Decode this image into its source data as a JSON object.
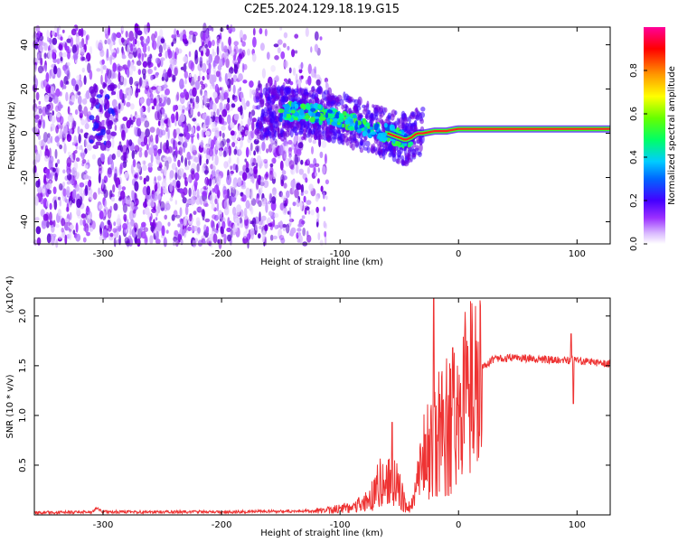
{
  "title": "C2E5.2024.129.18.19.G15",
  "colors": {
    "snr_line": "#ee3333",
    "spectro_purple": "#7a00e6",
    "ridge": "#ff2020"
  },
  "chart_data": [
    {
      "type": "heatmap",
      "name": "spectrogram",
      "xlabel": "Height of straight line (km)",
      "ylabel": "Frequency (Hz)",
      "xlim": [
        -358,
        128
      ],
      "ylim": [
        -50,
        48
      ],
      "xticks": [
        -300,
        -200,
        -100,
        0,
        100
      ],
      "yticks": [
        -40,
        -20,
        0,
        20,
        40
      ],
      "colorbar": {
        "label": "Normalized spectral amplitude",
        "range": [
          0.0,
          1.0
        ],
        "ticks": [
          "0.0",
          "0.2",
          "0.4",
          "0.6",
          "0.8"
        ]
      },
      "ridge": {
        "x": [
          -160,
          -140,
          -120,
          -100,
          -90,
          -80,
          -70,
          -60,
          -50,
          -45,
          -40,
          -35,
          -30,
          -20,
          -10,
          0,
          50,
          100,
          128
        ],
        "y": [
          9,
          10,
          9,
          7,
          5,
          3,
          1,
          0,
          -2,
          -3,
          -2,
          0,
          0,
          1,
          1,
          2,
          2,
          2,
          2
        ]
      },
      "noise_region": [
        -358,
        -120
      ],
      "gap_region": [
        -310,
        -303
      ]
    },
    {
      "type": "line",
      "name": "snr",
      "xlabel": "Height of straight line (km)",
      "ylabel": "SNR (10 * v/v)",
      "y_multiplier": "(x10^4)",
      "xlim": [
        -358,
        128
      ],
      "ylim": [
        0,
        2.18
      ],
      "xticks": [
        -300,
        -200,
        -100,
        0,
        100
      ],
      "yticks": [
        0.5,
        1.0,
        1.5,
        2.0
      ],
      "ytick_labels": [
        "0.5",
        "1.0",
        "1.5",
        "2.0"
      ],
      "envelope": {
        "x": [
          -358,
          -310,
          -305,
          -300,
          -200,
          -120,
          -100,
          -80,
          -70,
          -60,
          -50,
          -45,
          -40,
          -35,
          -30,
          -20,
          -10,
          0,
          10,
          20,
          30,
          50,
          80,
          100,
          128
        ],
        "y": [
          0.02,
          0.03,
          0.07,
          0.03,
          0.03,
          0.04,
          0.06,
          0.12,
          0.22,
          0.35,
          0.28,
          0.1,
          0.08,
          0.3,
          0.55,
          0.75,
          0.95,
          1.0,
          1.25,
          1.48,
          1.57,
          1.58,
          1.56,
          1.55,
          1.52
        ]
      },
      "spikes": [
        {
          "x": -56,
          "y": 0.93
        },
        {
          "x": -21,
          "y": 2.18
        },
        {
          "x": -5,
          "y": 1.68
        },
        {
          "x": 95,
          "y": 1.82
        },
        {
          "x": 97,
          "y": 1.12
        }
      ]
    }
  ]
}
